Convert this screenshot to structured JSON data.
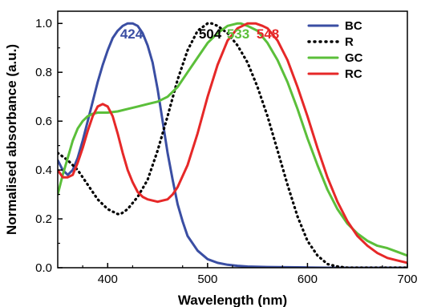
{
  "chart_data": {
    "type": "line",
    "xlabel": "Wavelength (nm)",
    "ylabel": "Normalised absorbance (a.u.)",
    "xlim": [
      350,
      700
    ],
    "ylim": [
      0.0,
      1.05
    ],
    "xticks": [
      "400",
      "500",
      "600",
      "700"
    ],
    "xtick_values": [
      400,
      500,
      600,
      700
    ],
    "yticks": [
      "0.0",
      "0.2",
      "0.4",
      "0.6",
      "0.8",
      "1.0"
    ],
    "ytick_values": [
      0.0,
      0.2,
      0.4,
      0.6,
      0.8,
      1.0
    ],
    "grid": false,
    "legend_position": "top-right",
    "series": [
      {
        "name": "BC",
        "color": "#3a4ea3",
        "dash": "solid",
        "x": [
          350,
          355,
          360,
          365,
          370,
          375,
          380,
          385,
          390,
          395,
          400,
          405,
          410,
          415,
          420,
          425,
          430,
          435,
          440,
          445,
          450,
          455,
          460,
          465,
          470,
          475,
          480,
          490,
          500,
          510,
          520,
          530,
          540,
          560,
          580,
          600,
          620,
          650,
          700
        ],
        "y": [
          0.44,
          0.4,
          0.38,
          0.4,
          0.45,
          0.52,
          0.6,
          0.68,
          0.76,
          0.83,
          0.89,
          0.94,
          0.97,
          0.99,
          1.0,
          1.0,
          0.99,
          0.96,
          0.91,
          0.84,
          0.73,
          0.6,
          0.47,
          0.36,
          0.26,
          0.19,
          0.13,
          0.07,
          0.035,
          0.02,
          0.012,
          0.008,
          0.005,
          0.003,
          0.002,
          0.001,
          0.0,
          0.0,
          0.0
        ]
      },
      {
        "name": "R",
        "color": "#000000",
        "dash": "dotted",
        "x": [
          350,
          360,
          370,
          380,
          390,
          400,
          410,
          413,
          420,
          430,
          440,
          450,
          460,
          470,
          480,
          490,
          500,
          504,
          510,
          520,
          530,
          540,
          550,
          560,
          570,
          580,
          590,
          600,
          610,
          620,
          630,
          640,
          660,
          700
        ],
        "y": [
          0.47,
          0.44,
          0.4,
          0.34,
          0.28,
          0.24,
          0.22,
          0.22,
          0.24,
          0.29,
          0.36,
          0.48,
          0.62,
          0.77,
          0.89,
          0.97,
          1.0,
          1.0,
          0.99,
          0.96,
          0.91,
          0.84,
          0.74,
          0.62,
          0.48,
          0.34,
          0.21,
          0.11,
          0.05,
          0.015,
          0.005,
          0.0,
          0.0,
          0.0
        ]
      },
      {
        "name": "GC",
        "color": "#5bbf3a",
        "dash": "solid",
        "x": [
          350,
          355,
          360,
          365,
          370,
          375,
          380,
          385,
          390,
          395,
          400,
          410,
          420,
          430,
          440,
          450,
          460,
          470,
          480,
          490,
          500,
          510,
          520,
          530,
          533,
          540,
          550,
          560,
          570,
          580,
          590,
          600,
          610,
          620,
          630,
          640,
          650,
          660,
          670,
          680,
          690,
          700
        ],
        "y": [
          0.3,
          0.38,
          0.45,
          0.52,
          0.57,
          0.6,
          0.62,
          0.63,
          0.635,
          0.635,
          0.635,
          0.64,
          0.65,
          0.66,
          0.67,
          0.68,
          0.7,
          0.74,
          0.8,
          0.86,
          0.92,
          0.96,
          0.99,
          1.0,
          1.0,
          0.99,
          0.97,
          0.92,
          0.85,
          0.76,
          0.65,
          0.53,
          0.42,
          0.32,
          0.24,
          0.18,
          0.14,
          0.11,
          0.09,
          0.08,
          0.065,
          0.05
        ]
      },
      {
        "name": "RC",
        "color": "#e62828",
        "dash": "solid",
        "x": [
          350,
          355,
          360,
          365,
          370,
          375,
          380,
          385,
          390,
          395,
          400,
          405,
          410,
          415,
          420,
          425,
          430,
          435,
          440,
          445,
          450,
          455,
          460,
          465,
          470,
          480,
          490,
          500,
          510,
          520,
          530,
          540,
          548,
          555,
          560,
          570,
          580,
          590,
          600,
          610,
          620,
          630,
          640,
          650,
          660,
          670,
          680,
          690,
          700
        ],
        "y": [
          0.4,
          0.37,
          0.37,
          0.38,
          0.43,
          0.49,
          0.56,
          0.62,
          0.66,
          0.67,
          0.66,
          0.62,
          0.55,
          0.47,
          0.4,
          0.35,
          0.31,
          0.29,
          0.28,
          0.275,
          0.27,
          0.275,
          0.28,
          0.3,
          0.33,
          0.42,
          0.55,
          0.7,
          0.83,
          0.93,
          0.98,
          1.0,
          1.0,
          0.99,
          0.98,
          0.93,
          0.85,
          0.74,
          0.62,
          0.49,
          0.37,
          0.27,
          0.19,
          0.13,
          0.09,
          0.06,
          0.04,
          0.03,
          0.02
        ]
      }
    ],
    "annotations": [
      {
        "text": "424",
        "x": 424,
        "color": "#3a4ea3"
      },
      {
        "text": "504",
        "x": 504,
        "color": "#000000"
      },
      {
        "text": "533",
        "x": 533,
        "color": "#5bbf3a"
      },
      {
        "text": "548",
        "x": 548,
        "color": "#e62828"
      }
    ]
  }
}
